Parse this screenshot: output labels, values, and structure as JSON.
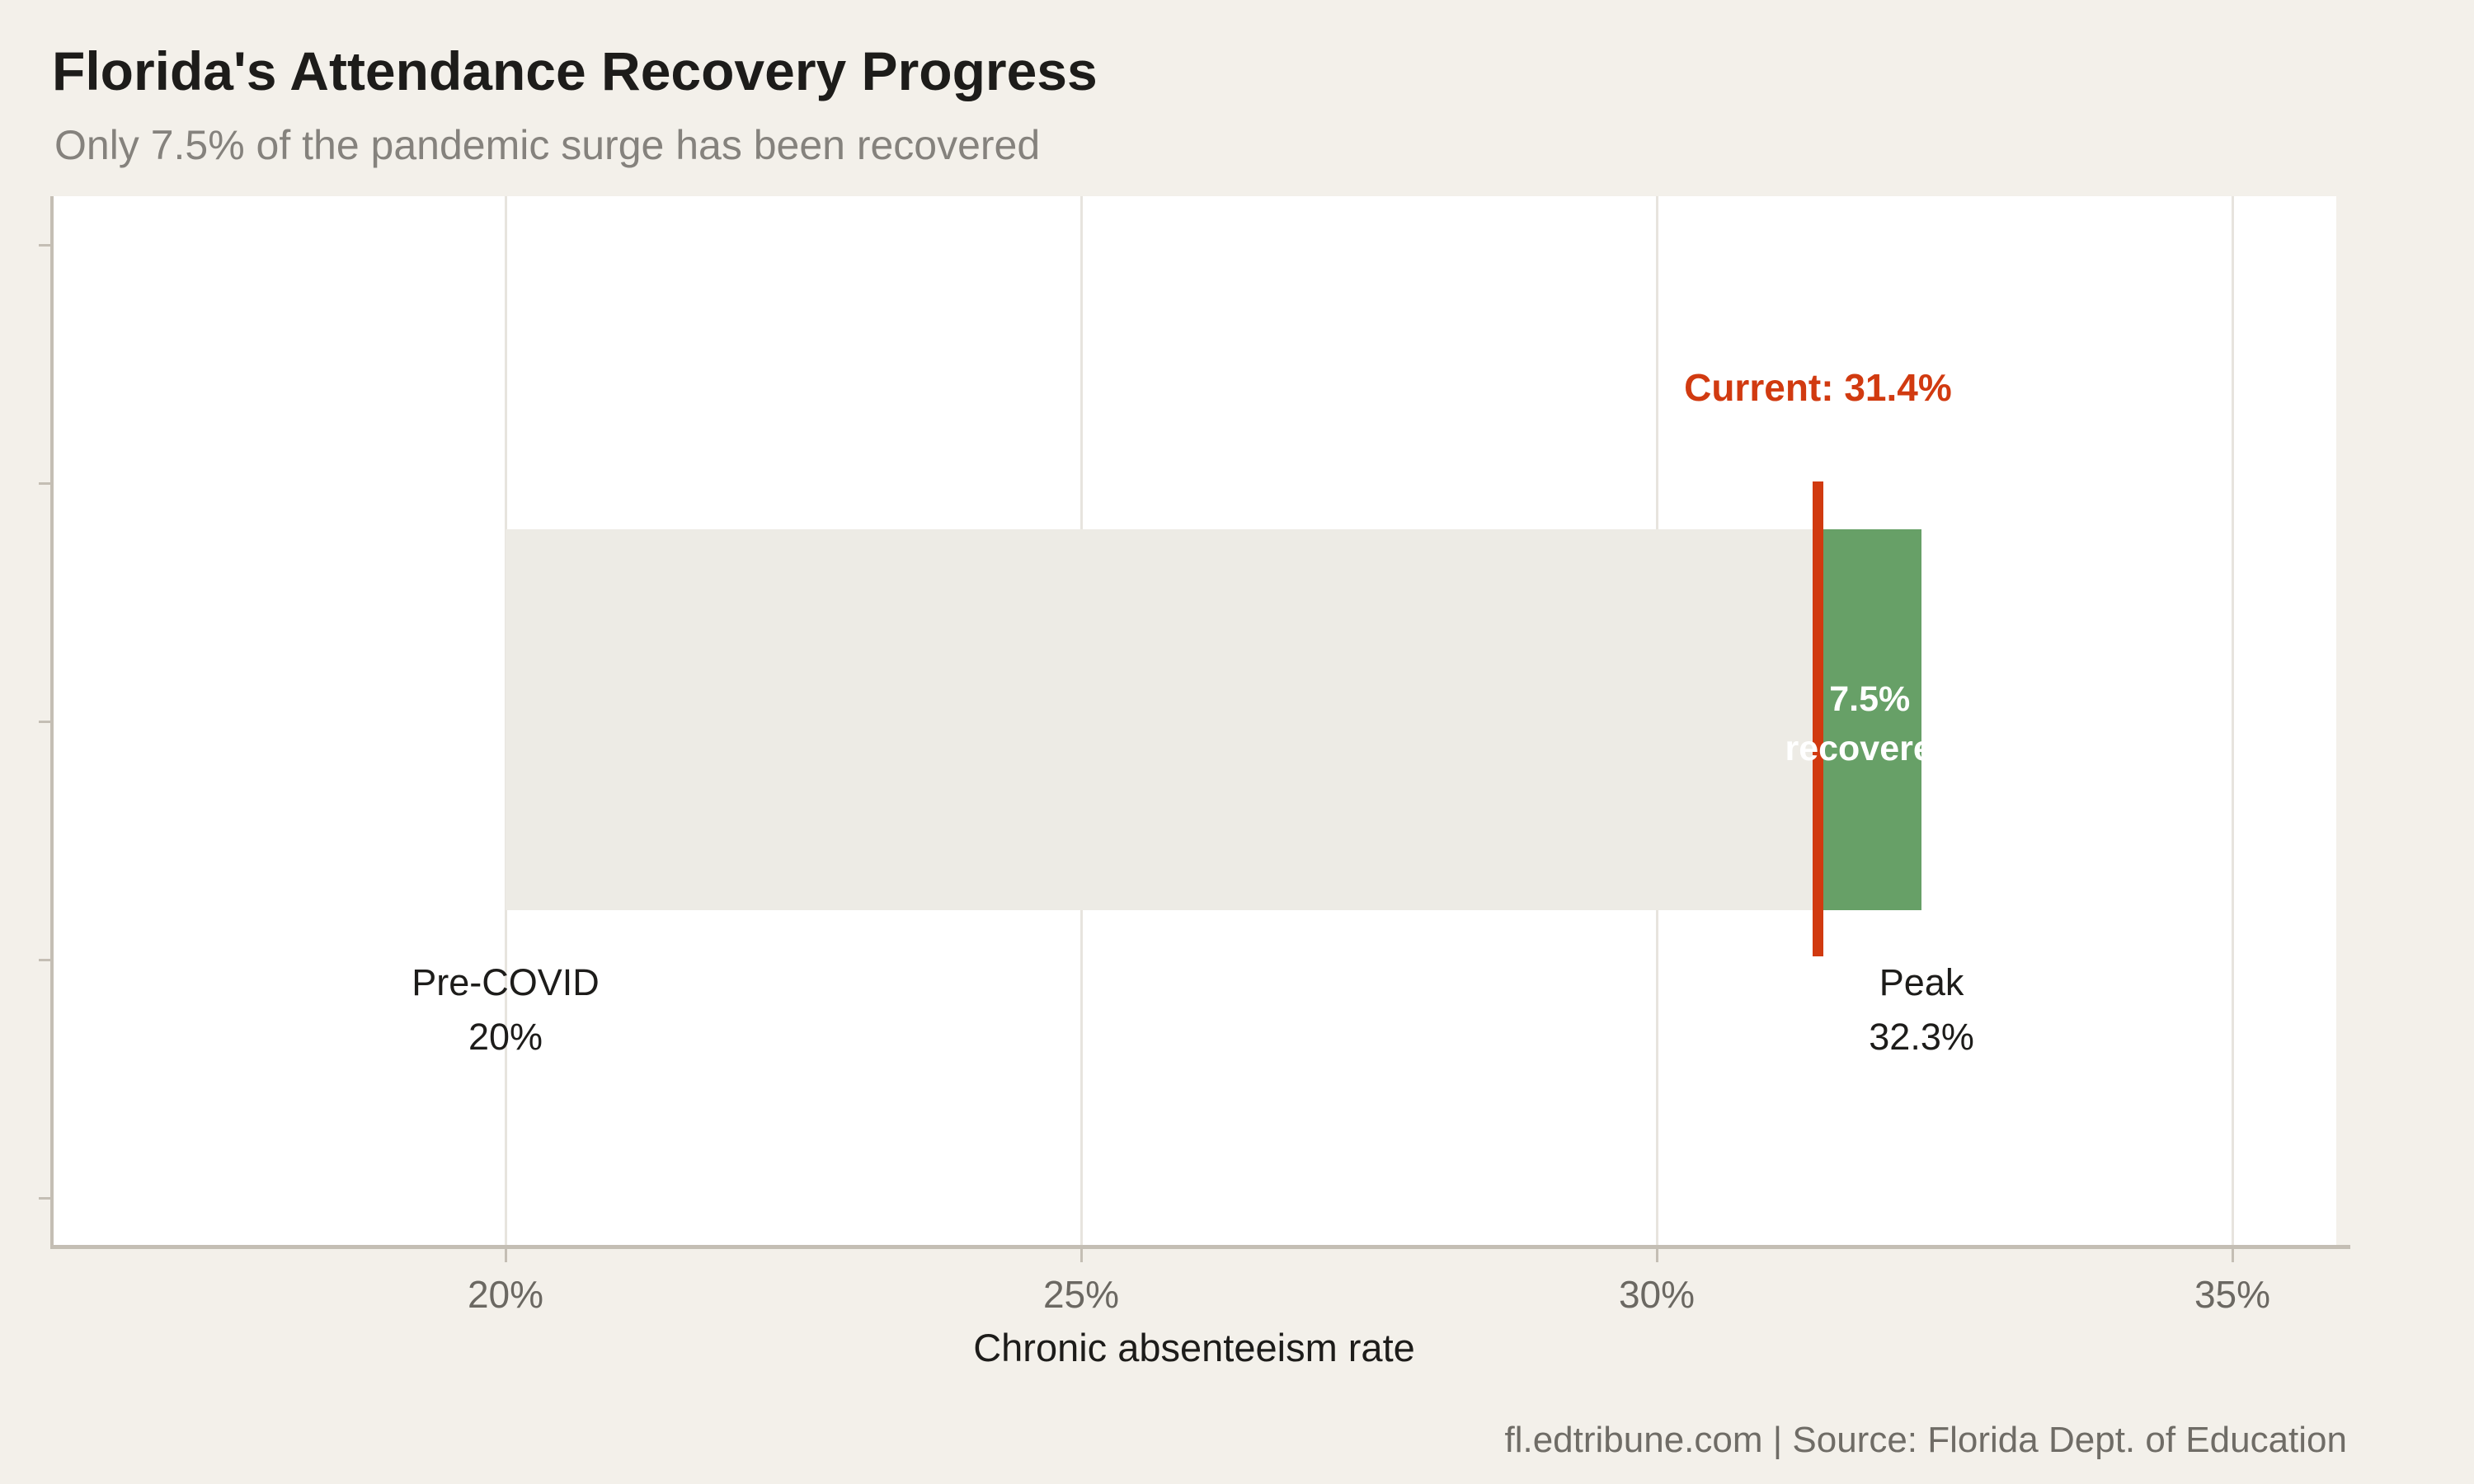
{
  "page": {
    "background": "#f3f0ea"
  },
  "chart_data": {
    "type": "bullet",
    "title": "Florida's Attendance Recovery Progress",
    "subtitle": "Only 7.5% of the pandemic surge has been recovered",
    "xlabel": "Chronic absenteeism rate",
    "x_axis": {
      "range_pct": [
        16.1,
        35.9
      ],
      "gridlines": true,
      "ticks": [
        {
          "value": 20,
          "label": "20%"
        },
        {
          "value": 25,
          "label": "25%"
        },
        {
          "value": 30,
          "label": "30%"
        },
        {
          "value": 35,
          "label": "35%"
        }
      ]
    },
    "series": {
      "pre_covid_pct": 20,
      "peak_pct": 32.3,
      "current_pct": 31.4,
      "recovered_share_of_surge_pct": 7.5
    },
    "annotations": {
      "current_label": "Current: 31.4%",
      "bar_label_line1": "7.5%",
      "bar_label_line2": "recovered",
      "pre_covid_line1": "Pre-COVID",
      "pre_covid_line2": "20%",
      "peak_line1": "Peak",
      "peak_line2": "32.3%"
    },
    "colors": {
      "background": "#f3f0ea",
      "panel": "#ffffff",
      "surge_band": "#edebe5",
      "recovered_bar": "#67a067",
      "current_marker": "#d13a10",
      "title_text": "#1d1c1a",
      "subtitle_text": "#85827d",
      "tick_text": "#6b6862",
      "footer_text": "#6f6c66",
      "axis_line": "#c4beb4",
      "gridline": "#e7e4de"
    }
  },
  "footer": {
    "text": "fl.edtribune.com | Source: Florida Dept. of Education"
  }
}
